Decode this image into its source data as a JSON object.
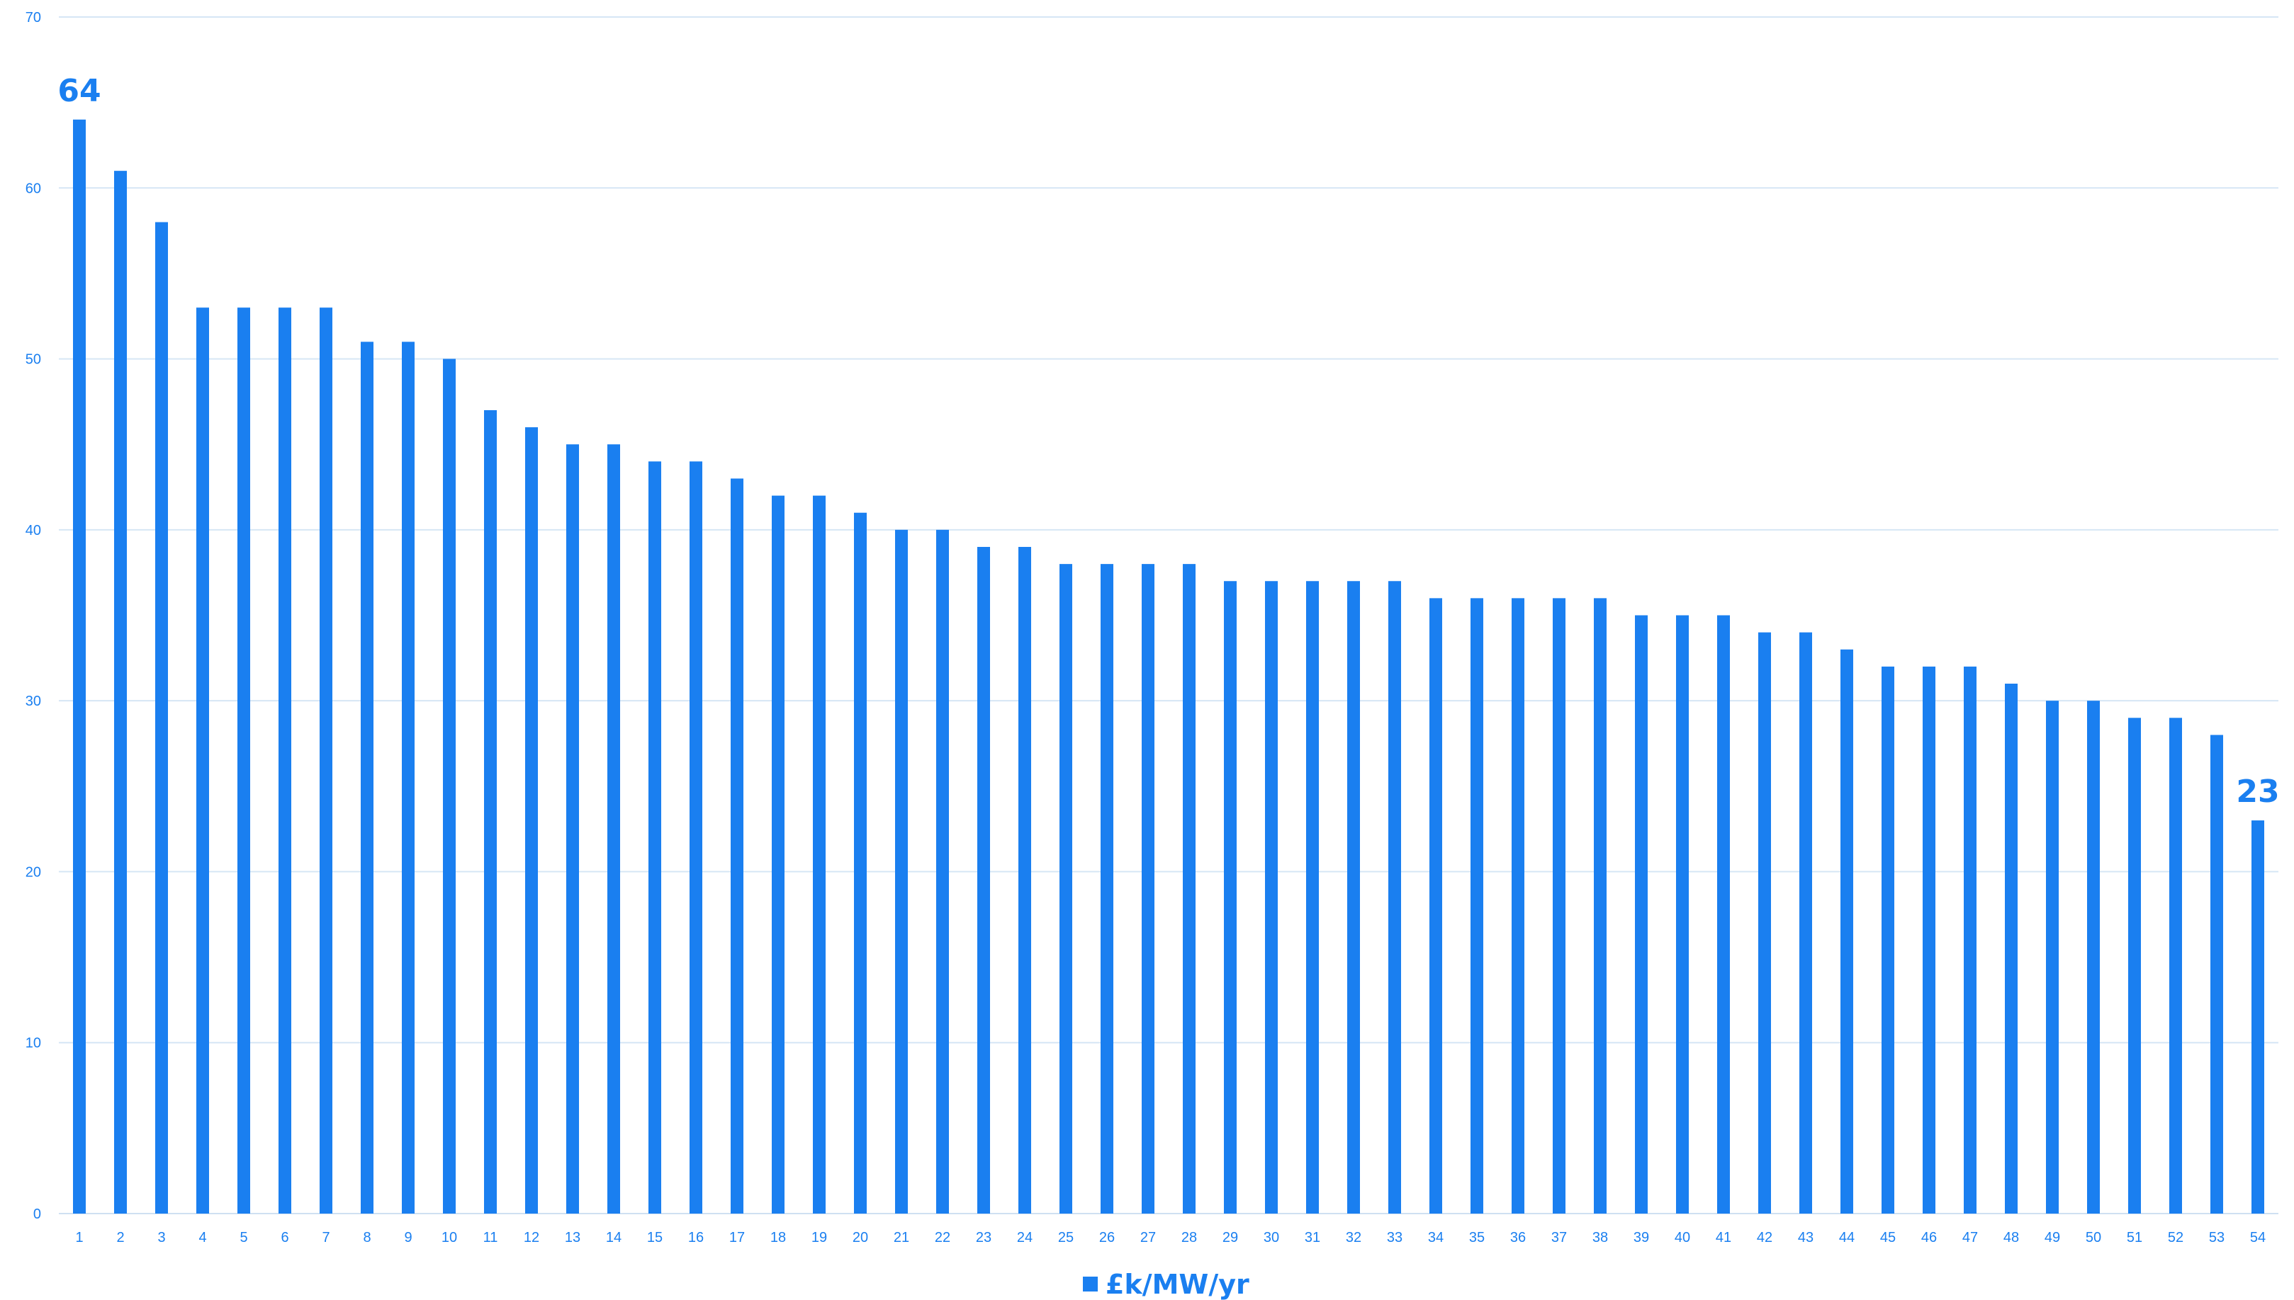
{
  "chart_data": {
    "type": "bar",
    "categories": [
      "1",
      "2",
      "3",
      "4",
      "5",
      "6",
      "7",
      "8",
      "9",
      "10",
      "11",
      "12",
      "13",
      "14",
      "15",
      "16",
      "17",
      "18",
      "19",
      "20",
      "21",
      "22",
      "23",
      "24",
      "25",
      "26",
      "27",
      "28",
      "29",
      "30",
      "31",
      "32",
      "33",
      "34",
      "35",
      "36",
      "37",
      "38",
      "39",
      "40",
      "41",
      "42",
      "43",
      "44",
      "45",
      "46",
      "47",
      "48",
      "49",
      "50",
      "51",
      "52",
      "53",
      "54"
    ],
    "series": [
      {
        "name": "£k/MW/yr",
        "values": [
          64,
          61,
          58,
          53,
          53,
          53,
          53,
          51,
          51,
          50,
          47,
          46,
          45,
          45,
          44,
          44,
          43,
          42,
          42,
          41,
          40,
          40,
          39,
          39,
          38,
          38,
          38,
          38,
          37,
          37,
          37,
          37,
          37,
          36,
          36,
          36,
          36,
          36,
          35,
          35,
          35,
          34,
          34,
          33,
          32,
          32,
          32,
          31,
          30,
          30,
          29,
          29,
          28,
          23
        ]
      }
    ],
    "data_labels": [
      {
        "category": "1",
        "text": "64"
      },
      {
        "category": "54",
        "text": "23"
      }
    ],
    "yticks": [
      "0",
      "10",
      "20",
      "30",
      "40",
      "50",
      "60",
      "70"
    ],
    "ylim": [
      0,
      70
    ],
    "grid": true,
    "legend_position": "bottom",
    "colors": {
      "bar": "#1a7ff0",
      "text": "#1a7ff0",
      "grid": "#d6e6f5",
      "axis": "#cfe0f2"
    }
  }
}
